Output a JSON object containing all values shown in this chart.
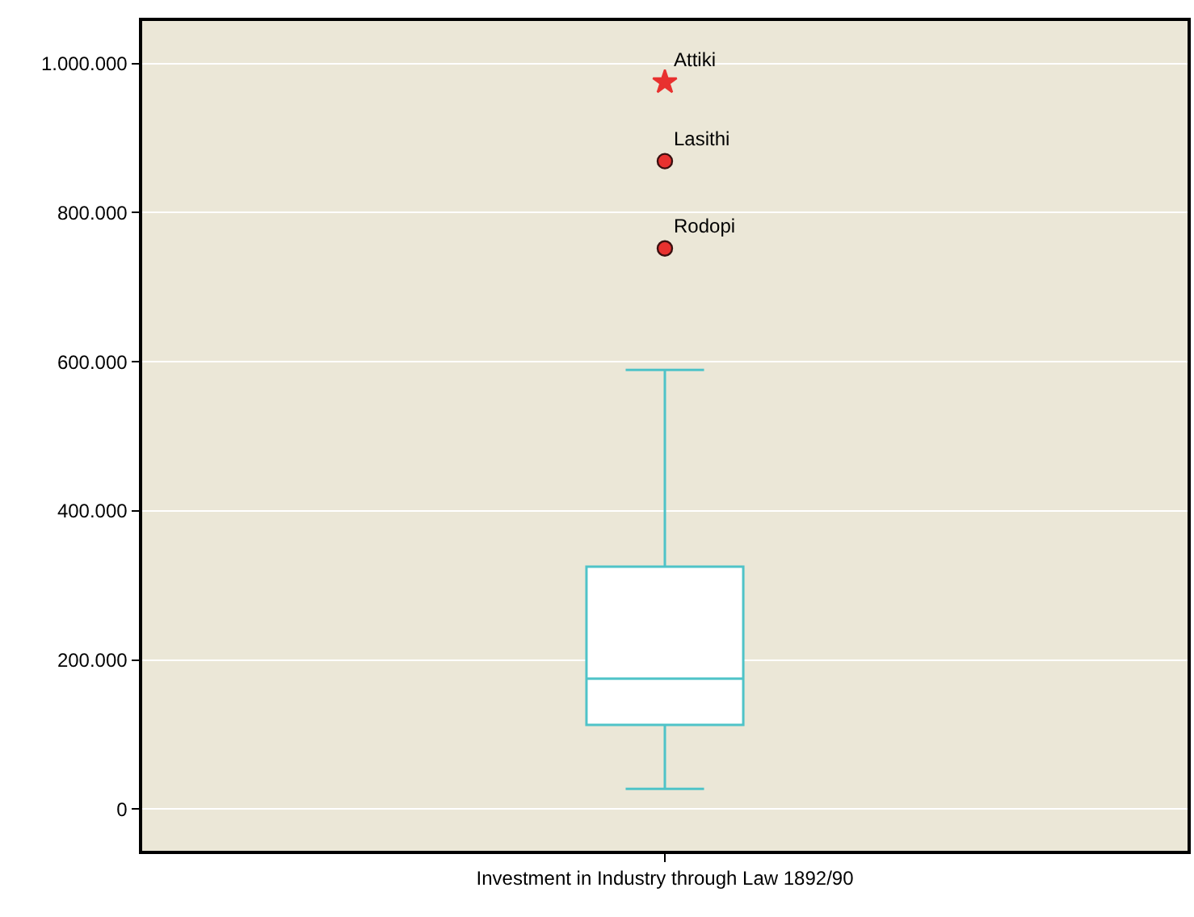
{
  "chart_data": {
    "type": "box",
    "categories": [
      "Investment in Industry through Law 1892/90"
    ],
    "boxes": [
      {
        "low": 27000,
        "q1": 113000,
        "median": 175000,
        "q3": 325000,
        "high": 589000
      }
    ],
    "series": [
      {
        "type": "scatter",
        "marker": "star",
        "color": "#e8312f",
        "x": [
          "Investment in Industry through Law 1892/90"
        ],
        "values": [
          975000
        ]
      },
      {
        "type": "scatter",
        "marker": "circle",
        "color": "#e8312f",
        "x": [
          "Investment in Industry through Law 1892/90",
          "Investment in Industry through Law 1892/90"
        ],
        "values": [
          752000,
          869000
        ]
      }
    ],
    "color": "#4fc3c8",
    "annotations": [
      {
        "text": "Attiki",
        "x": "Investment in Industry through Law 1892/90",
        "y": 975000
      },
      {
        "text": "Lasithi",
        "x": "Investment in Industry through Law 1892/90",
        "y": 869000
      },
      {
        "text": "Rodopi",
        "x": "Investment in Industry through Law 1892/90",
        "y": 752000
      }
    ],
    "ylim": [
      -56000,
      1057000
    ],
    "yticks": [
      {
        "value": 0,
        "label": "0"
      },
      {
        "value": 200000,
        "label": "200.000"
      },
      {
        "value": 400000,
        "label": "400.000"
      },
      {
        "value": 600000,
        "label": "600.000"
      },
      {
        "value": 800000,
        "label": "800.000"
      },
      {
        "value": 1000000,
        "label": "1.000.000"
      }
    ],
    "grid": "y"
  }
}
